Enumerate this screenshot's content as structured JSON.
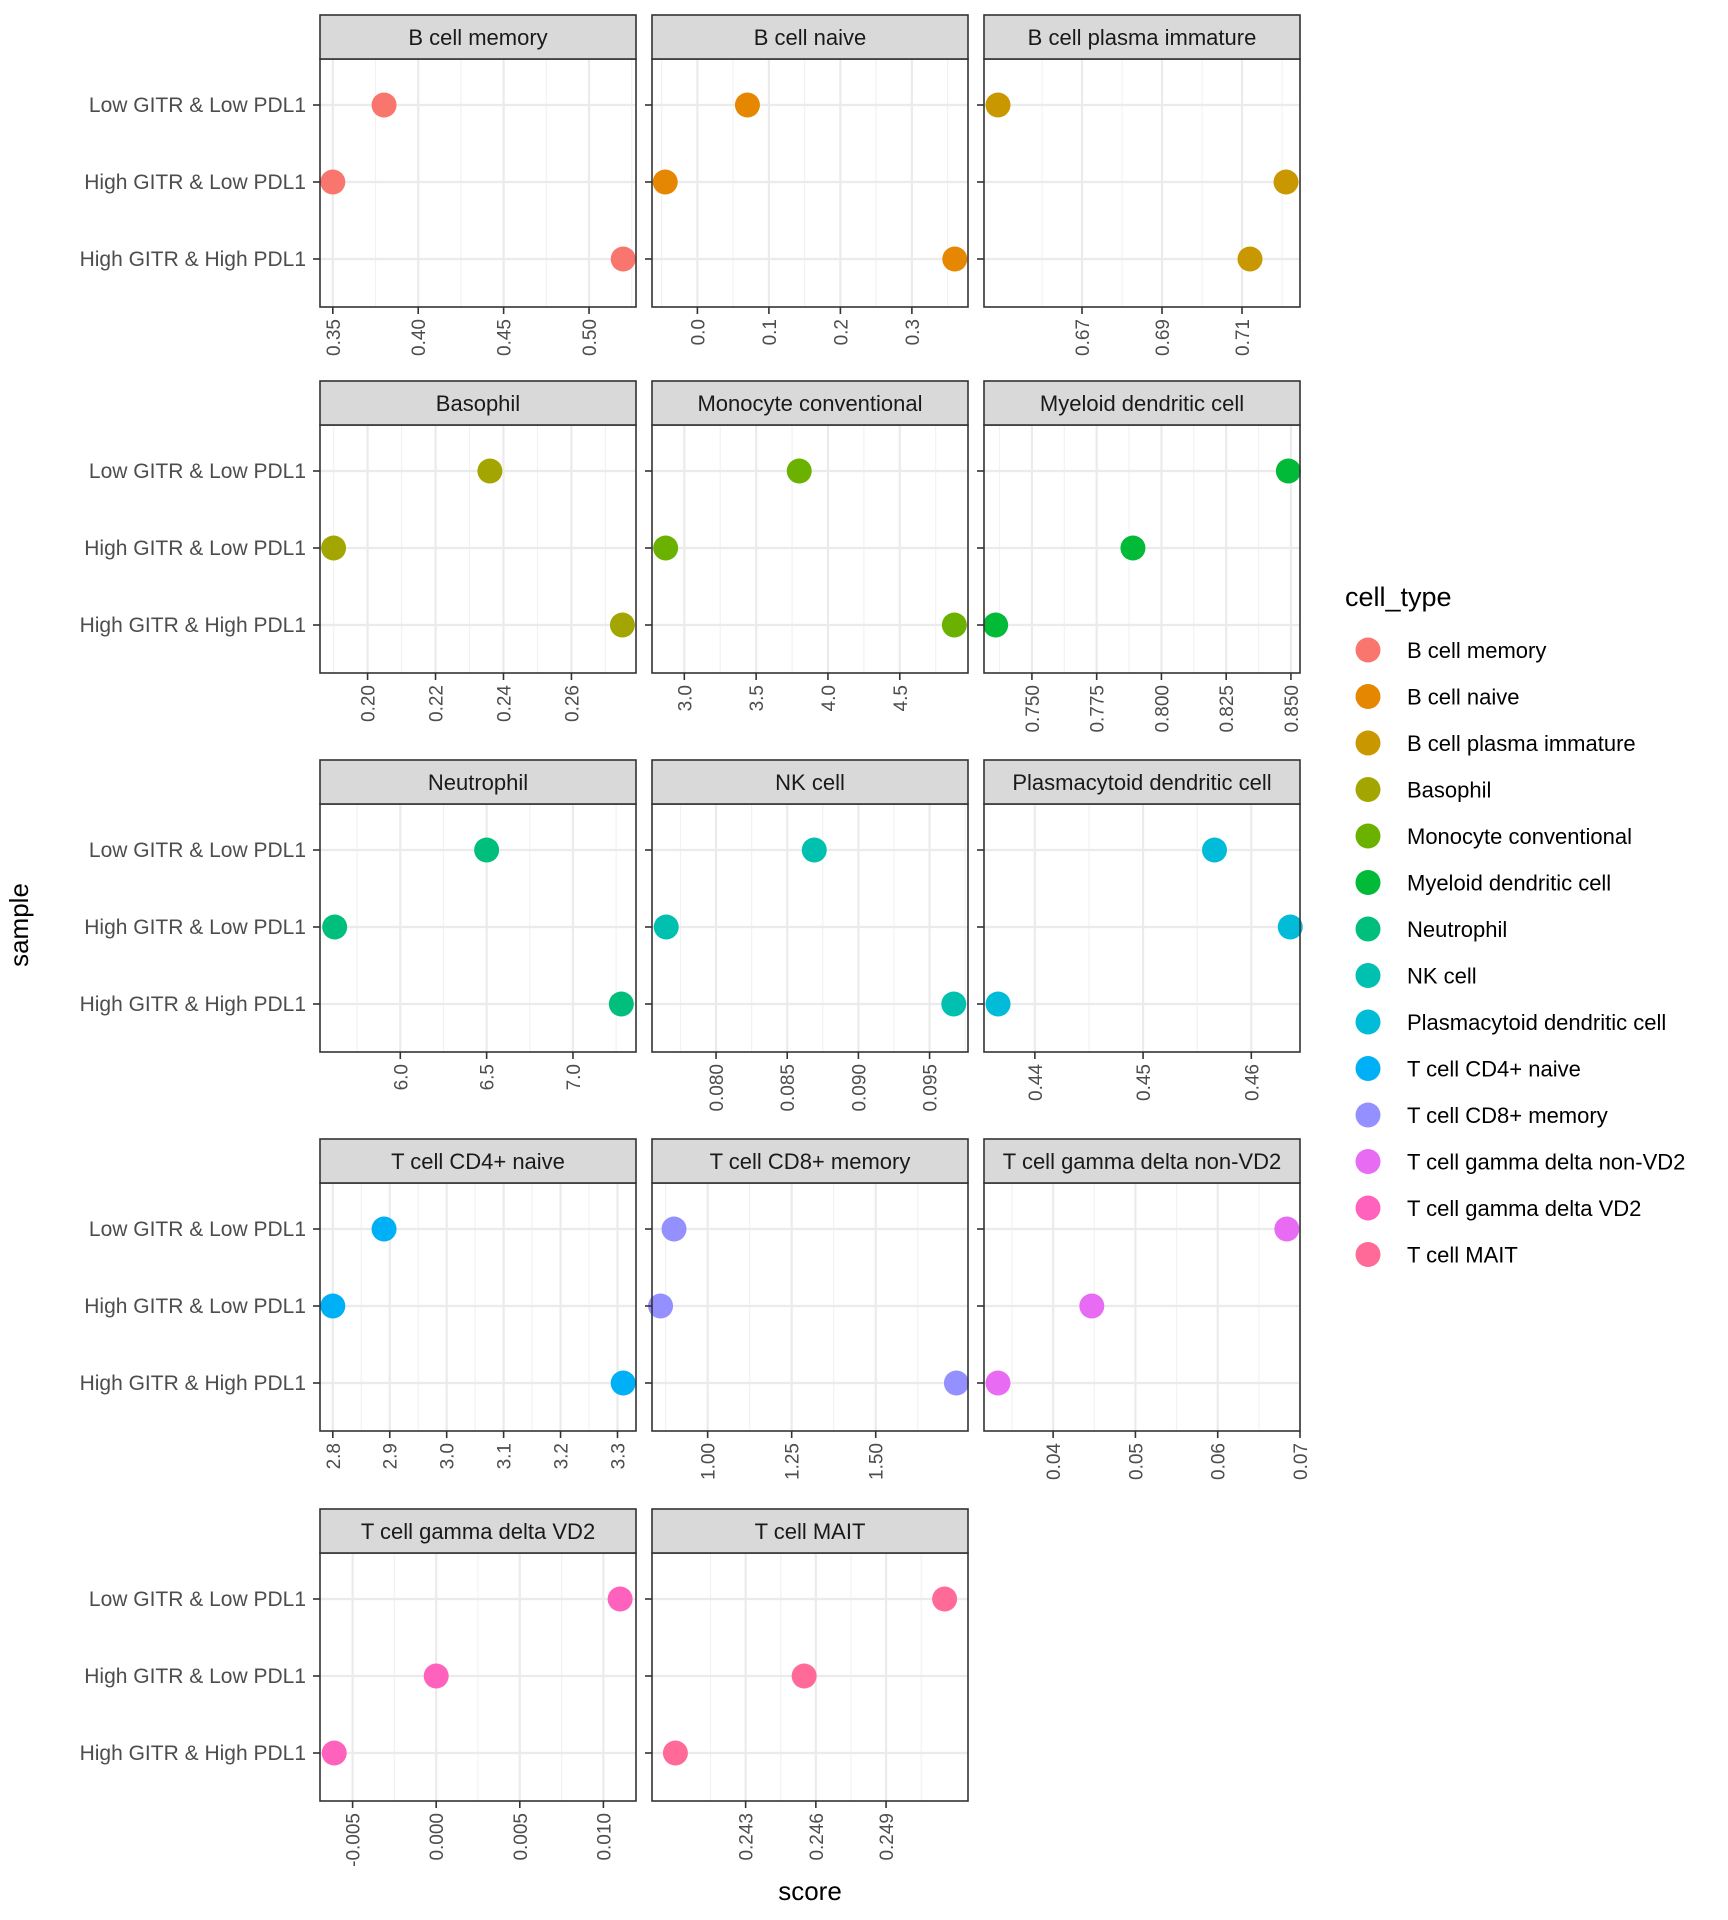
{
  "chart_data": {
    "type": "scatter",
    "xlabel": "score",
    "ylabel": "sample",
    "samples": [
      "Low GITR & Low PDL1",
      "High GITR & Low PDL1",
      "High GITR & High PDL1"
    ],
    "legend": {
      "title": "cell_type",
      "placement": "right",
      "entries": [
        {
          "label": "B cell memory",
          "color": "#F8766D"
        },
        {
          "label": "B cell naive",
          "color": "#E58700"
        },
        {
          "label": "B cell plasma immature",
          "color": "#C99800"
        },
        {
          "label": "Basophil",
          "color": "#A3A500"
        },
        {
          "label": "Monocyte conventional",
          "color": "#6BB100"
        },
        {
          "label": "Myeloid dendritic cell",
          "color": "#00BA38"
        },
        {
          "label": "Neutrophil",
          "color": "#00BF7D"
        },
        {
          "label": "NK cell",
          "color": "#00C0AF"
        },
        {
          "label": "Plasmacytoid dendritic cell",
          "color": "#00BCD8"
        },
        {
          "label": "T cell CD4+ naive",
          "color": "#00B0F6"
        },
        {
          "label": "T cell CD8+ memory",
          "color": "#9590FF"
        },
        {
          "label": "T cell gamma delta non-VD2",
          "color": "#E76BF3"
        },
        {
          "label": "T cell gamma delta VD2",
          "color": "#FF62BC"
        },
        {
          "label": "T cell MAIT",
          "color": "#FF6A98"
        }
      ]
    },
    "panels": [
      {
        "title": "B cell memory",
        "color": "#F8766D",
        "xlim": [
          0.3425,
          0.5275
        ],
        "ticks": [
          0.35,
          0.4,
          0.45,
          0.5
        ],
        "tick_labels": [
          "0.35",
          "0.40",
          "0.45",
          "0.50"
        ],
        "values": [
          0.38,
          0.35,
          0.52
        ]
      },
      {
        "title": "B cell naive",
        "color": "#E58700",
        "xlim": [
          -0.0635,
          0.3785
        ],
        "ticks": [
          0.0,
          0.1,
          0.2,
          0.3
        ],
        "tick_labels": [
          "0.0",
          "0.1",
          "0.2",
          "0.3"
        ],
        "values": [
          0.07,
          -0.045,
          0.36
        ]
      },
      {
        "title": "B cell plasma immature",
        "color": "#C99800",
        "xlim": [
          0.6455,
          0.7245
        ],
        "ticks": [
          0.67,
          0.69,
          0.71
        ],
        "tick_labels": [
          "0.67",
          "0.69",
          "0.71"
        ],
        "values": [
          0.649,
          0.721,
          0.712
        ]
      },
      {
        "title": "Basophil",
        "color": "#A3A500",
        "xlim": [
          0.186,
          0.279
        ],
        "ticks": [
          0.2,
          0.22,
          0.24,
          0.26
        ],
        "tick_labels": [
          "0.20",
          "0.22",
          "0.24",
          "0.26"
        ],
        "values": [
          0.236,
          0.19,
          0.275
        ]
      },
      {
        "title": "Monocyte conventional",
        "color": "#6BB100",
        "xlim": [
          2.775,
          4.975
        ],
        "ticks": [
          3.0,
          3.5,
          4.0,
          4.5
        ],
        "tick_labels": [
          "3.0",
          "3.5",
          "4.0",
          "4.5"
        ],
        "values": [
          3.8,
          2.87,
          4.88
        ]
      },
      {
        "title": "Myeloid dendritic cell",
        "color": "#00BA38",
        "xlim": [
          0.7315,
          0.8535
        ],
        "ticks": [
          0.75,
          0.775,
          0.8,
          0.825,
          0.85
        ],
        "tick_labels": [
          "0.750",
          "0.775",
          "0.800",
          "0.825",
          "0.850"
        ],
        "values": [
          0.849,
          0.789,
          0.736
        ]
      },
      {
        "title": "Neutrophil",
        "color": "#00BF7D",
        "xlim": [
          5.535,
          7.365
        ],
        "ticks": [
          6.0,
          6.5,
          7.0
        ],
        "tick_labels": [
          "6.0",
          "6.5",
          "7.0"
        ],
        "values": [
          6.5,
          5.62,
          7.28
        ]
      },
      {
        "title": "NK cell",
        "color": "#00C0AF",
        "xlim": [
          0.0755,
          0.0977
        ],
        "ticks": [
          0.08,
          0.085,
          0.09,
          0.095
        ],
        "tick_labels": [
          "0.080",
          "0.085",
          "0.090",
          "0.095"
        ],
        "values": [
          0.0869,
          0.0765,
          0.0967
        ]
      },
      {
        "title": "Plasmacytoid dendritic cell",
        "color": "#00BCD8",
        "xlim": [
          0.4353,
          0.4645
        ],
        "ticks": [
          0.44,
          0.45,
          0.46
        ],
        "tick_labels": [
          "0.44",
          "0.45",
          "0.46"
        ],
        "values": [
          0.4566,
          0.4636,
          0.4366
        ]
      },
      {
        "title": "T cell CD4+ naive",
        "color": "#00B0F6",
        "xlim": [
          2.7775,
          3.3325
        ],
        "ticks": [
          2.8,
          2.9,
          3.0,
          3.1,
          3.2,
          3.3
        ],
        "tick_labels": [
          "2.8",
          "2.9",
          "3.0",
          "3.1",
          "3.2",
          "3.3"
        ],
        "values": [
          2.89,
          2.8,
          3.31
        ]
      },
      {
        "title": "T cell CD8+ memory",
        "color": "#9590FF",
        "xlim": [
          0.8345,
          1.7745
        ],
        "ticks": [
          1.0,
          1.25,
          1.5
        ],
        "tick_labels": [
          "1.00",
          "1.25",
          "1.50"
        ],
        "values": [
          0.9,
          0.86,
          1.74
        ]
      },
      {
        "title": "T cell gamma delta non-VD2",
        "color": "#E76BF3",
        "xlim": [
          0.0316,
          0.07
        ],
        "ticks": [
          0.04,
          0.05,
          0.06,
          0.07
        ],
        "tick_labels": [
          "0.04",
          "0.05",
          "0.06",
          "0.07"
        ],
        "values": [
          0.0684,
          0.0447,
          0.0333
        ]
      },
      {
        "title": "T cell gamma delta VD2",
        "color": "#FF62BC",
        "xlim": [
          -0.00695,
          0.01195
        ],
        "ticks": [
          -0.005,
          0.0,
          0.005,
          0.01
        ],
        "tick_labels": [
          "-0.005",
          "0.000",
          "0.005",
          "0.010"
        ],
        "values": [
          0.011,
          0.0,
          -0.0061
        ]
      },
      {
        "title": "T cell MAIT",
        "color": "#FF6A98",
        "xlim": [
          0.239,
          0.2525
        ],
        "ticks": [
          0.243,
          0.246,
          0.249
        ],
        "tick_labels": [
          "0.243",
          "0.246",
          "0.249"
        ],
        "values": [
          0.2515,
          0.2455,
          0.24
        ]
      }
    ]
  }
}
